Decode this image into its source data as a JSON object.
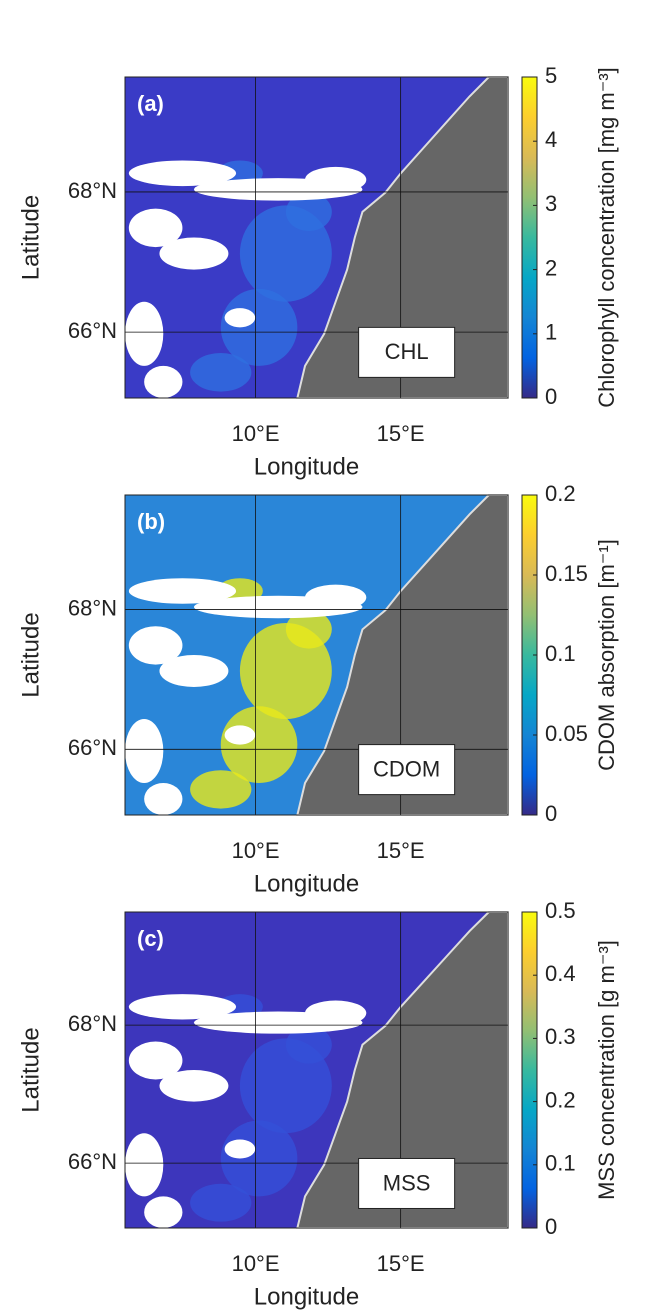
{
  "chart_data": [
    {
      "type": "map",
      "panel_label": "(a)",
      "box_label": "CHL",
      "xlabel": "Longitude",
      "ylabel": "Latitude",
      "xlim": [
        5.5,
        18.7
      ],
      "ylim": [
        65.06,
        69.64
      ],
      "xticks": [
        {
          "value": 10,
          "label": "10°E"
        },
        {
          "value": 15,
          "label": "15°E"
        }
      ],
      "yticks": [
        {
          "value": 66,
          "label": "66°N"
        },
        {
          "value": 68,
          "label": "68°N"
        }
      ],
      "grid": true,
      "ocean_color": "#3a3bc6",
      "bloom_color": "#2f6fe0",
      "colorbar": {
        "label": "Chlorophyll concentration [mg m⁻³]",
        "lim": [
          0,
          5
        ],
        "ticks": [
          0,
          1,
          2,
          3,
          4,
          5
        ],
        "colormap": [
          "#352a87",
          "#0363e1",
          "#1485d4",
          "#06a7c6",
          "#38b99e",
          "#92bf73",
          "#d9ba56",
          "#fcce2e",
          "#f9fb0e"
        ]
      }
    },
    {
      "type": "map",
      "panel_label": "(b)",
      "box_label": "CDOM",
      "xlabel": "Longitude",
      "ylabel": "Latitude",
      "xlim": [
        5.5,
        18.7
      ],
      "ylim": [
        65.06,
        69.64
      ],
      "xticks": [
        {
          "value": 10,
          "label": "10°E"
        },
        {
          "value": 15,
          "label": "15°E"
        }
      ],
      "yticks": [
        {
          "value": 66,
          "label": "66°N"
        },
        {
          "value": 68,
          "label": "68°N"
        }
      ],
      "grid": true,
      "ocean_color": "#2a86d8",
      "bloom_color": "#e8e81a",
      "colorbar": {
        "label": "CDOM absorption [m⁻¹]",
        "lim": [
          0,
          0.2
        ],
        "ticks": [
          0,
          0.05,
          0.1,
          0.15,
          0.2
        ],
        "colormap": [
          "#352a87",
          "#0363e1",
          "#1485d4",
          "#06a7c6",
          "#38b99e",
          "#92bf73",
          "#d9ba56",
          "#fcce2e",
          "#f9fb0e"
        ]
      }
    },
    {
      "type": "map",
      "panel_label": "(c)",
      "box_label": "MSS",
      "xlabel": "Longitude",
      "ylabel": "Latitude",
      "xlim": [
        5.5,
        18.7
      ],
      "ylim": [
        65.06,
        69.64
      ],
      "xticks": [
        {
          "value": 10,
          "label": "10°E"
        },
        {
          "value": 15,
          "label": "15°E"
        }
      ],
      "yticks": [
        {
          "value": 66,
          "label": "66°N"
        },
        {
          "value": 68,
          "label": "68°N"
        }
      ],
      "grid": true,
      "ocean_color": "#3d36bc",
      "bloom_color": "#3550d8",
      "colorbar": {
        "label": "MSS concentration [g m⁻³]",
        "lim": [
          0,
          0.5
        ],
        "ticks": [
          0,
          0.1,
          0.2,
          0.3,
          0.4,
          0.5
        ],
        "colormap": [
          "#352a87",
          "#0363e1",
          "#1485d4",
          "#06a7c6",
          "#38b99e",
          "#92bf73",
          "#d9ba56",
          "#fcce2e",
          "#f9fb0e"
        ]
      }
    }
  ]
}
